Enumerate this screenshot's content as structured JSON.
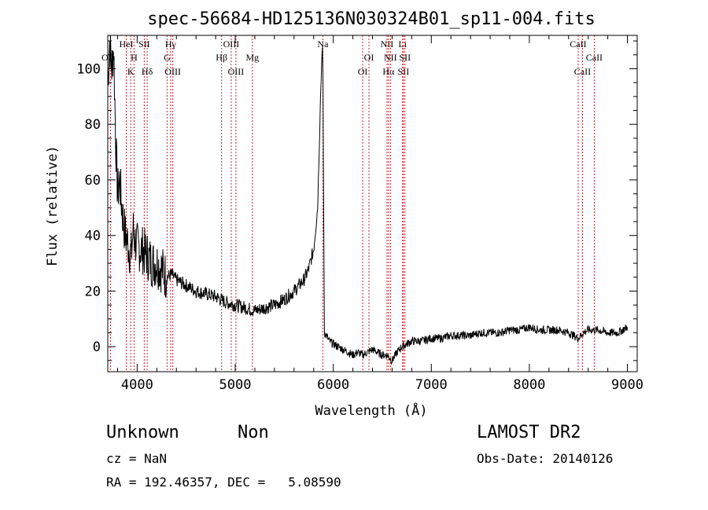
{
  "chart_data": {
    "type": "line",
    "title": "spec-56684-HD125136N030324B01_sp11-004.fits",
    "xlabel": "Wavelength (Å)",
    "ylabel": "Flux (relative)",
    "xlim": [
      3700,
      9100
    ],
    "ylim": [
      -9,
      112
    ],
    "x_ticks": [
      4000,
      5000,
      6000,
      7000,
      8000,
      9000
    ],
    "y_ticks": [
      0,
      20,
      40,
      60,
      80,
      100
    ],
    "grid": false,
    "series": [
      {
        "x": [
          3700,
          3720,
          3740,
          3760,
          3780,
          3800,
          3820,
          3840,
          3860,
          3880,
          3900,
          3920,
          3940,
          3960,
          3980,
          4000,
          4050,
          4100,
          4150,
          4200,
          4250,
          4300,
          4350,
          4400,
          4500,
          4600,
          4700,
          4800,
          4900,
          5000,
          5100,
          5200,
          5300,
          5400,
          5500,
          5600,
          5700,
          5750,
          5800,
          5840,
          5860,
          5870,
          5880,
          5890,
          5895,
          5900,
          5910,
          5930,
          5960,
          6000,
          6050,
          6100,
          6150,
          6200,
          6250,
          6300,
          6350,
          6400,
          6450,
          6500,
          6550,
          6600,
          6650,
          6700,
          6750,
          6800,
          6900,
          7000,
          7100,
          7200,
          7300,
          7400,
          7500,
          7600,
          7700,
          7800,
          7900,
          8000,
          8100,
          8200,
          8300,
          8400,
          8450,
          8500,
          8550,
          8600,
          8650,
          8700,
          8800,
          8900,
          8950,
          9000
        ],
        "y": [
          95,
          110,
          100,
          108,
          75,
          55,
          60,
          52,
          45,
          40,
          38,
          35,
          33,
          42,
          38,
          36,
          35,
          33,
          30,
          30,
          28,
          25,
          26,
          24,
          22,
          20,
          19,
          18,
          16,
          15,
          14,
          13,
          14,
          15,
          17,
          20,
          24,
          28,
          35,
          50,
          75,
          90,
          100,
          108,
          95,
          60,
          5,
          4,
          2,
          1,
          0,
          -1,
          -2,
          -3,
          -2,
          -3,
          -2,
          -1,
          -2,
          -3,
          -3,
          -5,
          -2,
          0,
          1,
          2,
          2,
          3,
          3,
          4,
          4,
          4,
          5,
          5,
          5,
          6,
          6,
          7,
          6,
          6,
          6,
          5,
          4,
          3,
          5,
          6,
          6,
          6,
          5,
          5,
          6,
          7
        ]
      }
    ],
    "line_markers": [
      {
        "label": "OII",
        "x": 3727,
        "row": 1,
        "side": "left"
      },
      {
        "label": "HeI",
        "x": 3889,
        "row": 0,
        "side": "center"
      },
      {
        "label": "K",
        "x": 3934,
        "row": 2,
        "side": "center"
      },
      {
        "label": "H",
        "x": 3968,
        "row": 1,
        "side": "center"
      },
      {
        "label": "SII",
        "x": 4072,
        "row": 0,
        "side": "center"
      },
      {
        "label": "Hδ",
        "x": 4102,
        "row": 2,
        "side": "center"
      },
      {
        "label": "G",
        "x": 4305,
        "row": 1,
        "side": "center"
      },
      {
        "label": "Hγ",
        "x": 4341,
        "row": 0,
        "side": "center"
      },
      {
        "label": "OIII",
        "x": 4363,
        "row": 2,
        "side": "center"
      },
      {
        "label": "Hβ",
        "x": 4861,
        "row": 1,
        "side": "center"
      },
      {
        "label": "OIII",
        "x": 4959,
        "row": 0,
        "side": "center"
      },
      {
        "label": "OIII",
        "x": 5007,
        "row": 2,
        "side": "center"
      },
      {
        "label": "Mg",
        "x": 5175,
        "row": 1,
        "side": "center"
      },
      {
        "label": "Na",
        "x": 5894,
        "row": 0,
        "side": "center"
      },
      {
        "label": "OI",
        "x": 6300,
        "row": 2,
        "side": "center"
      },
      {
        "label": "OI",
        "x": 6364,
        "row": 1,
        "side": "center"
      },
      {
        "label": "NII",
        "x": 6548,
        "row": 0,
        "side": "center"
      },
      {
        "label": "Hα",
        "x": 6563,
        "row": 2,
        "side": "center"
      },
      {
        "label": "NII",
        "x": 6583,
        "row": 1,
        "side": "center"
      },
      {
        "label": "Li",
        "x": 6707,
        "row": 0,
        "side": "center"
      },
      {
        "label": "SII",
        "x": 6716,
        "row": 2,
        "side": "center"
      },
      {
        "label": "SII",
        "x": 6731,
        "row": 1,
        "side": "center"
      },
      {
        "label": "CaII",
        "x": 8498,
        "row": 0,
        "side": "center"
      },
      {
        "label": "CaII",
        "x": 8542,
        "row": 2,
        "side": "center"
      },
      {
        "label": "CaII",
        "x": 8662,
        "row": 1,
        "side": "center"
      }
    ]
  },
  "info": {
    "class": "Unknown",
    "subclass": "Non",
    "survey": "LAMOST DR2",
    "cz": "cz = NaN",
    "obs_date": "Obs-Date: 20140126",
    "coords": "RA = 192.46357, DEC =   5.08590"
  }
}
